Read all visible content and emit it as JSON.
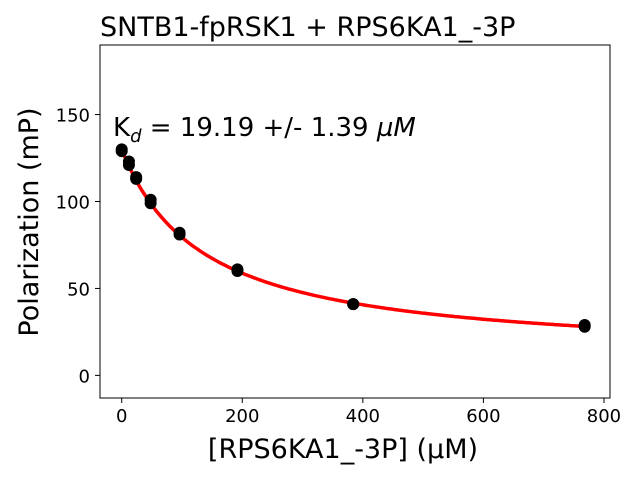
{
  "chart_data": {
    "type": "scatter",
    "title": "SNTB1-fpRSK1 + RPS6KA1_-3P",
    "xlabel": "[RPS6KA1_-3P] (µM)",
    "ylabel": "Polarization (mP)",
    "annotation": {
      "prefix": "K",
      "subscript": "d",
      "text": " = 19.19 +/- 1.39 ",
      "unit": "µM"
    },
    "xlim": [
      -36,
      810
    ],
    "ylim": [
      -13,
      190
    ],
    "xticks": [
      0,
      200,
      400,
      600,
      800
    ],
    "yticks": [
      0,
      50,
      100,
      150
    ],
    "grid": false,
    "series": [
      {
        "name": "data",
        "color": "#000000",
        "x": [
          0,
          0,
          12,
          12,
          24,
          24,
          48,
          48,
          96,
          96,
          192,
          192,
          384,
          384,
          768,
          768
        ],
        "y": [
          130,
          129,
          123,
          121,
          114,
          113,
          101,
          99,
          82,
          81,
          61,
          60,
          41,
          41,
          29,
          28
        ]
      },
      {
        "name": "fit",
        "color": "#ff0000",
        "model": "bottom + (top-bottom)*K/(K+x)",
        "params": {
          "top": 130,
          "bottom": 10,
          "K": 137
        },
        "x_range": [
          0,
          768
        ]
      }
    ]
  }
}
